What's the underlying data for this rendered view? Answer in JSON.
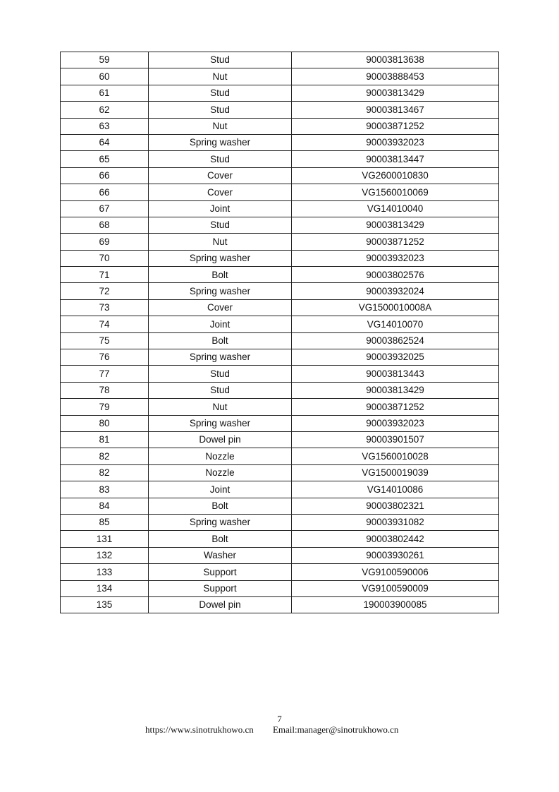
{
  "table": {
    "rows": [
      [
        "59",
        "Stud",
        "90003813638"
      ],
      [
        "60",
        "Nut",
        "90003888453"
      ],
      [
        "61",
        "Stud",
        "90003813429"
      ],
      [
        "62",
        "Stud",
        "90003813467"
      ],
      [
        "63",
        "Nut",
        "90003871252"
      ],
      [
        "64",
        "Spring washer",
        "90003932023"
      ],
      [
        "65",
        "Stud",
        "90003813447"
      ],
      [
        "66",
        "Cover",
        "VG2600010830"
      ],
      [
        "66",
        "Cover",
        "VG1560010069"
      ],
      [
        "67",
        "Joint",
        "VG14010040"
      ],
      [
        "68",
        "Stud",
        "90003813429"
      ],
      [
        "69",
        "Nut",
        "90003871252"
      ],
      [
        "70",
        "Spring washer",
        "90003932023"
      ],
      [
        "71",
        "Bolt",
        "90003802576"
      ],
      [
        "72",
        "Spring washer",
        "90003932024"
      ],
      [
        "73",
        "Cover",
        "VG1500010008A"
      ],
      [
        "74",
        "Joint",
        "VG14010070"
      ],
      [
        "75",
        "Bolt",
        "90003862524"
      ],
      [
        "76",
        "Spring washer",
        "90003932025"
      ],
      [
        "77",
        "Stud",
        "90003813443"
      ],
      [
        "78",
        "Stud",
        "90003813429"
      ],
      [
        "79",
        "Nut",
        "90003871252"
      ],
      [
        "80",
        "Spring washer",
        "90003932023"
      ],
      [
        "81",
        "Dowel pin",
        "90003901507"
      ],
      [
        "82",
        "Nozzle",
        "VG1560010028"
      ],
      [
        "82",
        "Nozzle",
        "VG1500019039"
      ],
      [
        "83",
        "Joint",
        "VG14010086"
      ],
      [
        "84",
        "Bolt",
        "90003802321"
      ],
      [
        "85",
        "Spring washer",
        "90003931082"
      ],
      [
        "131",
        "Bolt",
        "90003802442"
      ],
      [
        "132",
        "Washer",
        "90003930261"
      ],
      [
        "133",
        "Support",
        "VG9100590006"
      ],
      [
        "134",
        "Support",
        "VG9100590009"
      ],
      [
        "135",
        "Dowel pin",
        "190003900085"
      ]
    ]
  },
  "footer": {
    "page_number": "7",
    "website": "https://www.sinotrukhowo.cn",
    "email": "Email:manager@sinotrukhowo.cn"
  }
}
